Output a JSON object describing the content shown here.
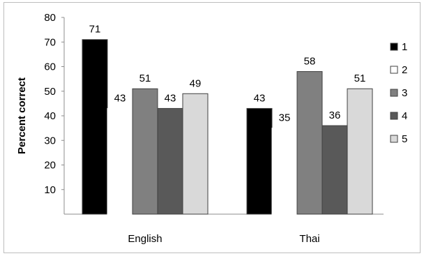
{
  "chart_data": {
    "type": "bar",
    "title": "",
    "xlabel": "",
    "ylabel": "Percent correct",
    "ylim": [
      0,
      80
    ],
    "yticks": [
      10,
      20,
      30,
      40,
      50,
      60,
      70,
      80
    ],
    "categories": [
      "English",
      "Thai"
    ],
    "series": [
      {
        "name": "1",
        "values": [
          71,
          43
        ],
        "color": "#000000"
      },
      {
        "name": "2",
        "values": [
          43,
          35
        ],
        "color": "#ffffff"
      },
      {
        "name": "3",
        "values": [
          51,
          58
        ],
        "color": "#808080"
      },
      {
        "name": "4",
        "values": [
          43,
          36
        ],
        "color": "#595959"
      },
      {
        "name": "5",
        "values": [
          49,
          51
        ],
        "color": "#d9d9d9"
      }
    ],
    "data_labels": true,
    "grid": false,
    "legend": "right"
  }
}
